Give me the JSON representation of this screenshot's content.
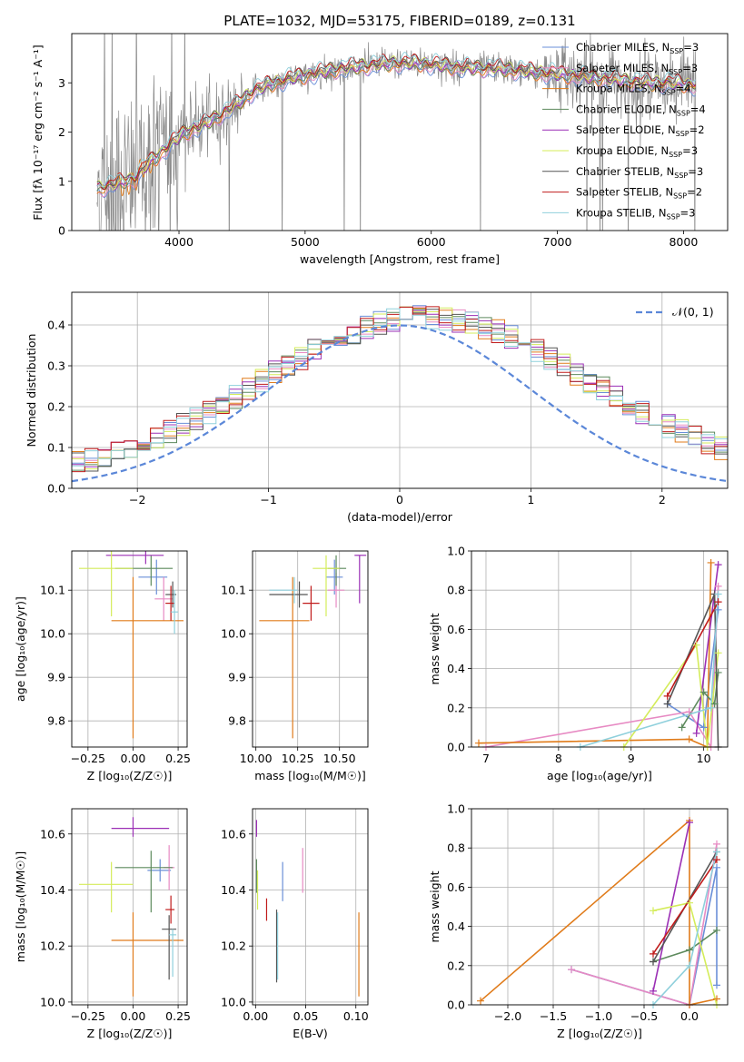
{
  "title": "PLATE=1032, MJD=53175, FIBERID=0189, z=0.131",
  "models": [
    {
      "name": "Chabrier MILES, N<sub>SSP</sub>=3",
      "label": "Chabrier MILES, N",
      "sub": "SSP",
      "tail": "=3",
      "color": "#6a8fd8"
    },
    {
      "name": "Salpeter MILES",
      "label": "Salpeter MILES, N",
      "sub": "SSP",
      "tail": "=3",
      "color": "#e78ac3"
    },
    {
      "name": "Kroupa MILES",
      "label": "Kroupa MILES, N",
      "sub": "SSP",
      "tail": "=4",
      "color": "#e07b1a"
    },
    {
      "name": "Chabrier ELODIE",
      "label": "Chabrier ELODIE, N",
      "sub": "SSP",
      "tail": "=4",
      "color": "#5d8a5d"
    },
    {
      "name": "Salpeter ELODIE",
      "label": "Salpeter ELODIE, N",
      "sub": "SSP",
      "tail": "=2",
      "color": "#9b2fb5"
    },
    {
      "name": "Kroupa ELODIE",
      "label": "Kroupa ELODIE, N",
      "sub": "SSP",
      "tail": "=3",
      "color": "#d4ec5a"
    },
    {
      "name": "Chabrier STELIB",
      "label": "Chabrier STELIB, N",
      "sub": "SSP",
      "tail": "=3",
      "color": "#555555"
    },
    {
      "name": "Salpeter STELIB",
      "label": "Salpeter STELIB, N",
      "sub": "SSP",
      "tail": "=2",
      "color": "#c01b1b"
    },
    {
      "name": "Kroupa STELIB",
      "label": "Kroupa STELIB, N",
      "sub": "SSP",
      "tail": "=3",
      "color": "#8fd0dc"
    }
  ],
  "chart_data": [
    {
      "id": "spectrum",
      "type": "line",
      "title": "PLATE=1032, MJD=53175, FIBERID=0189, z=0.131",
      "xlabel": "wavelength [Angstrom, rest frame]",
      "ylabel_main": "Flux [f",
      "ylabel_sub": "λ",
      "ylabel_rest": "10⁻¹⁷ erg cm⁻² s⁻¹ A⁻¹]",
      "xlim": [
        3150,
        8350
      ],
      "ylim": [
        0,
        4.0
      ],
      "xticks": [
        4000,
        5000,
        6000,
        7000,
        8000
      ],
      "yticks": [
        0,
        1,
        2,
        3
      ],
      "data_range": [
        3350,
        8100
      ],
      "continuum_knots": {
        "x": [
          3350,
          3500,
          3650,
          3750,
          3850,
          3950,
          4050,
          4150,
          4300,
          4450,
          4600,
          4750,
          4900,
          5100,
          5300,
          5500,
          5700,
          5900,
          6100,
          6300,
          6500,
          6700,
          6900,
          7100,
          7300,
          7500,
          7700,
          7900,
          8100
        ],
        "y": [
          0.85,
          0.95,
          1.05,
          1.35,
          1.55,
          1.8,
          2.0,
          2.1,
          2.3,
          2.55,
          2.85,
          3.0,
          3.1,
          3.2,
          3.3,
          3.35,
          3.4,
          3.4,
          3.35,
          3.3,
          3.3,
          3.25,
          3.2,
          3.15,
          3.1,
          3.05,
          3.0,
          3.0,
          2.95
        ]
      }
    },
    {
      "id": "residuals",
      "type": "histogram",
      "xlabel": "(data-model)/error",
      "ylabel": "Normed distribution",
      "xlim": [
        -2.5,
        2.5
      ],
      "ylim": [
        0,
        0.48
      ],
      "xticks": [
        -2,
        -1,
        0,
        1,
        2
      ],
      "yticks": [
        0.0,
        0.1,
        0.2,
        0.3,
        0.4
      ],
      "bin_width": 0.1,
      "legend": "𝒩(0, 1)",
      "reference_curve": "gaussian mean 0 sigma 1"
    },
    {
      "id": "age-vs-Z",
      "type": "errorbar",
      "xlabel": "Z [log₁₀(Z/Z☉)]",
      "ylabel": "age  [log₁₀(age/yr)]",
      "xlim": [
        -0.34,
        0.3
      ],
      "ylim": [
        9.74,
        10.19
      ],
      "xticks": [
        -0.25,
        0.0,
        0.25
      ],
      "yticks": [
        9.8,
        9.9,
        10.0,
        10.1
      ],
      "points": [
        {
          "m": 0,
          "x": 0.13,
          "xerr": [
            0.1,
            0.06
          ],
          "y": 10.13,
          "yerr": [
            0.04,
            0.04
          ]
        },
        {
          "m": 1,
          "x": 0.17,
          "xerr": [
            0.05,
            0.05
          ],
          "y": 10.08,
          "yerr": [
            0.05,
            0.05
          ]
        },
        {
          "m": 2,
          "x": 0.0,
          "xerr": [
            0.12,
            0.28
          ],
          "y": 10.03,
          "yerr": [
            0.27,
            0.1
          ]
        },
        {
          "m": 3,
          "x": 0.1,
          "xerr": [
            0.2,
            0.12
          ],
          "y": 10.15,
          "yerr": [
            0.04,
            0.03
          ]
        },
        {
          "m": 4,
          "x": 0.07,
          "xerr": [
            0.22,
            0.1
          ],
          "y": 10.18,
          "yerr": [
            0.02,
            0.01
          ]
        },
        {
          "m": 5,
          "x": -0.12,
          "xerr": [
            0.18,
            0.12
          ],
          "y": 10.15,
          "yerr": [
            0.11,
            0.04
          ]
        },
        {
          "m": 6,
          "x": 0.22,
          "xerr": [
            0.04,
            0.02
          ],
          "y": 10.09,
          "yerr": [
            0.03,
            0.03
          ]
        },
        {
          "m": 7,
          "x": 0.21,
          "xerr": [
            0.03,
            0.02
          ],
          "y": 10.07,
          "yerr": [
            0.04,
            0.04
          ]
        },
        {
          "m": 8,
          "x": 0.23,
          "xerr": [
            0.02,
            0.02
          ],
          "y": 10.05,
          "yerr": [
            0.05,
            0.05
          ]
        }
      ]
    },
    {
      "id": "age-vs-mass",
      "type": "errorbar",
      "xlabel": "mass [log₁₀(M/M☉)]",
      "ylabel": "",
      "xlim": [
        9.98,
        10.67
      ],
      "ylim": [
        9.74,
        10.19
      ],
      "xticks": [
        10.0,
        10.25,
        10.5
      ],
      "yticks": [
        9.8,
        9.9,
        10.0,
        10.1
      ],
      "points": [
        {
          "m": 0,
          "x": 10.47,
          "xerr": [
            0.05,
            0.05
          ],
          "y": 10.13,
          "yerr": [
            0.04,
            0.04
          ]
        },
        {
          "m": 1,
          "x": 10.48,
          "xerr": [
            0.05,
            0.05
          ],
          "y": 10.1,
          "yerr": [
            0.04,
            0.04
          ]
        },
        {
          "m": 2,
          "x": 10.22,
          "xerr": [
            0.2,
            0.1
          ],
          "y": 10.03,
          "yerr": [
            0.27,
            0.1
          ]
        },
        {
          "m": 3,
          "x": 10.48,
          "xerr": [
            0.05,
            0.06
          ],
          "y": 10.15,
          "yerr": [
            0.04,
            0.03
          ]
        },
        {
          "m": 4,
          "x": 10.62,
          "xerr": [
            0.03,
            0.04
          ],
          "y": 10.18,
          "yerr": [
            0.11,
            0.0
          ]
        },
        {
          "m": 5,
          "x": 10.42,
          "xerr": [
            0.08,
            0.08
          ],
          "y": 10.15,
          "yerr": [
            0.11,
            0.03
          ]
        },
        {
          "m": 6,
          "x": 10.26,
          "xerr": [
            0.18,
            0.05
          ],
          "y": 10.09,
          "yerr": [
            0.03,
            0.03
          ]
        },
        {
          "m": 7,
          "x": 10.33,
          "xerr": [
            0.05,
            0.05
          ],
          "y": 10.07,
          "yerr": [
            0.04,
            0.04
          ]
        },
        {
          "m": 8,
          "x": 10.23,
          "xerr": [
            0.15,
            0.02
          ],
          "y": 10.1,
          "yerr": [
            0.03,
            0.03
          ]
        }
      ]
    },
    {
      "id": "mass-weight-vs-age",
      "type": "line",
      "xlabel": "age  [log₁₀(age/yr)]",
      "ylabel": "mass weight",
      "xlim": [
        6.8,
        10.33
      ],
      "ylim": [
        0,
        1.0
      ],
      "xticks": [
        7,
        8,
        9,
        10
      ],
      "yticks": [
        0.0,
        0.2,
        0.4,
        0.6,
        0.8,
        1.0
      ],
      "series": [
        {
          "m": 0,
          "x": [
            9.5,
            10.0,
            10.2
          ],
          "y": [
            0.22,
            0.1,
            0.7
          ]
        },
        {
          "m": 1,
          "x": [
            7.0,
            9.8,
            10.1,
            10.2
          ],
          "y": [
            0.0,
            0.18,
            0.0,
            0.82
          ]
        },
        {
          "m": 2,
          "x": [
            6.9,
            9.8,
            10.05,
            10.1
          ],
          "y": [
            0.02,
            0.04,
            0.0,
            0.94
          ]
        },
        {
          "m": 3,
          "x": [
            9.7,
            10.0,
            10.15,
            10.2
          ],
          "y": [
            0.1,
            0.28,
            0.22,
            0.38
          ]
        },
        {
          "m": 4,
          "x": [
            9.9,
            10.2
          ],
          "y": [
            0.07,
            0.93
          ]
        },
        {
          "m": 5,
          "x": [
            8.9,
            9.9,
            10.05,
            10.2
          ],
          "y": [
            0.0,
            0.52,
            0.0,
            0.48
          ]
        },
        {
          "m": 6,
          "x": [
            9.5,
            10.15,
            10.2
          ],
          "y": [
            0.22,
            0.78,
            0.0
          ]
        },
        {
          "m": 7,
          "x": [
            9.5,
            10.2
          ],
          "y": [
            0.26,
            0.74
          ]
        },
        {
          "m": 8,
          "x": [
            8.3,
            10.1,
            10.2
          ],
          "y": [
            0.0,
            0.2,
            0.78
          ]
        }
      ]
    },
    {
      "id": "mass-vs-Z",
      "type": "errorbar",
      "xlabel": "Z [log₁₀(Z/Z☉)]",
      "ylabel": "mass [log₁₀(M/M☉)]",
      "xlim": [
        -0.34,
        0.3
      ],
      "ylim": [
        9.99,
        10.69
      ],
      "xticks": [
        -0.25,
        0.0,
        0.25
      ],
      "yticks": [
        10.0,
        10.2,
        10.4,
        10.6
      ],
      "points": [
        {
          "m": 0,
          "x": 0.15,
          "xerr": [
            0.07,
            0.06
          ],
          "y": 10.47,
          "yerr": [
            0.04,
            0.04
          ]
        },
        {
          "m": 1,
          "x": 0.2,
          "xerr": [
            0.03,
            0.03
          ],
          "y": 10.48,
          "yerr": [
            0.08,
            0.08
          ]
        },
        {
          "m": 2,
          "x": 0.0,
          "xerr": [
            0.12,
            0.28
          ],
          "y": 10.22,
          "yerr": [
            0.2,
            0.1
          ]
        },
        {
          "m": 3,
          "x": 0.1,
          "xerr": [
            0.2,
            0.12
          ],
          "y": 10.48,
          "yerr": [
            0.16,
            0.06
          ]
        },
        {
          "m": 4,
          "x": 0.0,
          "xerr": [
            0.12,
            0.2
          ],
          "y": 10.62,
          "yerr": [
            0.03,
            0.04
          ]
        },
        {
          "m": 5,
          "x": -0.12,
          "xerr": [
            0.18,
            0.12
          ],
          "y": 10.42,
          "yerr": [
            0.1,
            0.08
          ]
        },
        {
          "m": 6,
          "x": 0.2,
          "xerr": [
            0.04,
            0.04
          ],
          "y": 10.26,
          "yerr": [
            0.18,
            0.05
          ]
        },
        {
          "m": 7,
          "x": 0.21,
          "xerr": [
            0.03,
            0.02
          ],
          "y": 10.33,
          "yerr": [
            0.05,
            0.05
          ]
        },
        {
          "m": 8,
          "x": 0.22,
          "xerr": [
            0.02,
            0.02
          ],
          "y": 10.24,
          "yerr": [
            0.15,
            0.02
          ]
        }
      ]
    },
    {
      "id": "mass-vs-EBV",
      "type": "errorbar",
      "xlabel": "E(B-V)",
      "ylabel": "",
      "xlim": [
        -0.003,
        0.112
      ],
      "ylim": [
        9.99,
        10.69
      ],
      "xticks": [
        0.0,
        0.05,
        0.1
      ],
      "yticks": [
        10.0,
        10.2,
        10.4,
        10.6
      ],
      "points": [
        {
          "m": 0,
          "x": 0.027,
          "y": 10.43,
          "yerr": [
            0.07,
            0.07
          ]
        },
        {
          "m": 1,
          "x": 0.047,
          "y": 10.47,
          "yerr": [
            0.08,
            0.08
          ]
        },
        {
          "m": 2,
          "x": 0.103,
          "y": 10.17,
          "yerr": [
            0.15,
            0.15
          ]
        },
        {
          "m": 3,
          "x": 0.001,
          "y": 10.45,
          "yerr": [
            0.06,
            0.06
          ]
        },
        {
          "m": 4,
          "x": 0.001,
          "y": 10.62,
          "yerr": [
            0.03,
            0.03
          ]
        },
        {
          "m": 5,
          "x": 0.002,
          "y": 10.4,
          "yerr": [
            0.07,
            0.07
          ]
        },
        {
          "m": 6,
          "x": 0.021,
          "y": 10.2,
          "yerr": [
            0.13,
            0.13
          ]
        },
        {
          "m": 7,
          "x": 0.011,
          "y": 10.33,
          "yerr": [
            0.04,
            0.04
          ]
        },
        {
          "m": 8,
          "x": 0.022,
          "y": 10.2,
          "yerr": [
            0.12,
            0.12
          ]
        }
      ]
    },
    {
      "id": "mass-weight-vs-Z",
      "type": "line",
      "xlabel": "Z [log₁₀(Z/Z☉)]",
      "ylabel": "mass weight",
      "xlim": [
        -2.4,
        0.42
      ],
      "ylim": [
        0,
        1.0
      ],
      "xticks": [
        -2.0,
        -1.5,
        -1.0,
        -0.5,
        0.0
      ],
      "yticks": [
        0.0,
        0.2,
        0.4,
        0.6,
        0.8,
        1.0
      ],
      "series": [
        {
          "m": 0,
          "x": [
            -1.3,
            0.0,
            0.3,
            0.3
          ],
          "y": [
            0.18,
            0.0,
            0.7,
            0.1
          ]
        },
        {
          "m": 1,
          "x": [
            -1.3,
            0.0,
            0.3
          ],
          "y": [
            0.18,
            0.0,
            0.82
          ]
        },
        {
          "m": 2,
          "x": [
            -2.3,
            0.0,
            0.0,
            0.3
          ],
          "y": [
            0.02,
            0.94,
            0.0,
            0.03
          ]
        },
        {
          "m": 3,
          "x": [
            -0.4,
            0.0,
            0.3
          ],
          "y": [
            0.22,
            0.28,
            0.38
          ]
        },
        {
          "m": 4,
          "x": [
            -0.4,
            0.0
          ],
          "y": [
            0.07,
            0.93
          ]
        },
        {
          "m": 5,
          "x": [
            -0.4,
            0.0,
            0.3
          ],
          "y": [
            0.48,
            0.52,
            0.0
          ]
        },
        {
          "m": 6,
          "x": [
            -0.4,
            0.3
          ],
          "y": [
            0.22,
            0.78
          ]
        },
        {
          "m": 7,
          "x": [
            -0.4,
            0.3
          ],
          "y": [
            0.26,
            0.74
          ]
        },
        {
          "m": 8,
          "x": [
            -0.4,
            0.0,
            0.3
          ],
          "y": [
            0.0,
            0.2,
            0.78
          ]
        }
      ]
    }
  ]
}
